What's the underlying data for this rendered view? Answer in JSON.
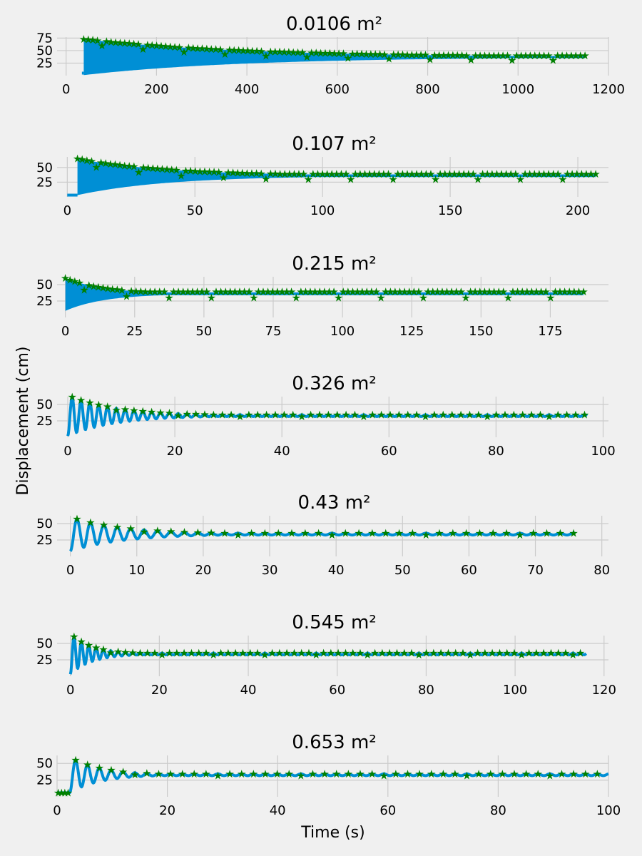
{
  "figure": {
    "ylabel": "Displacement (cm)",
    "xlabel": "Time (s)"
  },
  "colors": {
    "background": "#f0f0f0",
    "line": "#008fd5",
    "marker": "#008000",
    "grid": "#cbcbcb"
  },
  "chart_data": [
    {
      "type": "line",
      "title": "0.0106 m²",
      "style": "dense",
      "xlim": [
        -20,
        1200
      ],
      "ylim": [
        0,
        77
      ],
      "xticks": [
        "0",
        "200",
        "400",
        "600",
        "800",
        "1000",
        "1200"
      ],
      "xtick_values": [
        0,
        200,
        400,
        600,
        800,
        1000,
        1200
      ],
      "yticks": [
        "25",
        "50",
        "75"
      ],
      "ytick_values": [
        25,
        50,
        75
      ],
      "t_start": 39,
      "t_end": 1148,
      "baseline": 5,
      "equilibrium": 37,
      "peak": 73,
      "trough": 1,
      "tau": 350,
      "period": 10
    },
    {
      "type": "line",
      "title": "0.107 m²",
      "style": "dense",
      "xlim": [
        -4,
        212
      ],
      "ylim": [
        0,
        68
      ],
      "xticks": [
        "0",
        "50",
        "100",
        "150",
        "200"
      ],
      "xtick_values": [
        0,
        50,
        100,
        150,
        200
      ],
      "yticks": [
        "25",
        "50"
      ],
      "ytick_values": [
        25,
        50
      ],
      "t_start": 4,
      "t_end": 207,
      "baseline": 3,
      "equilibrium": 36,
      "peak": 65,
      "trough": 3,
      "tau": 35,
      "period": 1.5
    },
    {
      "type": "line",
      "title": "0.215 m²",
      "style": "dense",
      "xlim": [
        -3,
        196
      ],
      "ylim": [
        0,
        62
      ],
      "xticks": [
        "0",
        "25",
        "50",
        "75",
        "100",
        "125",
        "150",
        "175"
      ],
      "xtick_values": [
        0,
        25,
        50,
        75,
        100,
        125,
        150,
        175
      ],
      "yticks": [
        "25",
        "50"
      ],
      "ytick_values": [
        25,
        50
      ],
      "t_start": 0,
      "t_end": 187,
      "baseline": 10,
      "equilibrium": 36,
      "peak": 60,
      "trough": 10,
      "tau": 14,
      "period": 1.3
    },
    {
      "type": "line",
      "title": "0.326 m²",
      "style": "osc",
      "xlim": [
        -2,
        101
      ],
      "ylim": [
        0,
        62
      ],
      "xticks": [
        "0",
        "20",
        "40",
        "60",
        "80",
        "100"
      ],
      "xtick_values": [
        0,
        20,
        40,
        60,
        80,
        100
      ],
      "yticks": [
        "25",
        "50"
      ],
      "ytick_values": [
        25,
        50
      ],
      "t_start": 0,
      "t_end": 97,
      "baseline": 2,
      "equilibrium": 33,
      "peak": 59,
      "trough": 2,
      "tau": 9,
      "period": 1.65
    },
    {
      "type": "line",
      "title": "0.43 m²",
      "style": "osc",
      "xlim": [
        -2,
        81
      ],
      "ylim": [
        0,
        62
      ],
      "xticks": [
        "0",
        "10",
        "20",
        "30",
        "40",
        "50",
        "60",
        "70",
        "80"
      ],
      "xtick_values": [
        0,
        10,
        20,
        30,
        40,
        50,
        60,
        70,
        80
      ],
      "yticks": [
        "25",
        "50"
      ],
      "ytick_values": [
        25,
        50
      ],
      "t_start": 0,
      "t_end": 76,
      "baseline": 8,
      "equilibrium": 34,
      "peak": 58,
      "trough": 8,
      "tau": 8,
      "period": 2.02
    },
    {
      "type": "line",
      "title": "0.545 m²",
      "style": "osc",
      "xlim": [
        -3,
        121
      ],
      "ylim": [
        0,
        62
      ],
      "xticks": [
        "0",
        "20",
        "40",
        "60",
        "80",
        "100",
        "120"
      ],
      "xtick_values": [
        0,
        20,
        40,
        60,
        80,
        100,
        120
      ],
      "yticks": [
        "25",
        "50"
      ],
      "ytick_values": [
        25,
        50
      ],
      "t_start": 0,
      "t_end": 116,
      "baseline": 3,
      "equilibrium": 34,
      "peak": 59,
      "trough": 3,
      "tau": 5,
      "period": 1.65
    },
    {
      "type": "line",
      "title": "0.653 m²",
      "style": "osc",
      "xlim": [
        0,
        100
      ],
      "ylim": [
        0,
        62
      ],
      "xticks": [
        "0",
        "20",
        "40",
        "60",
        "80",
        "100"
      ],
      "xtick_values": [
        0,
        20,
        40,
        60,
        80,
        100
      ],
      "yticks": [
        "25",
        "50"
      ],
      "ytick_values": [
        25,
        50
      ],
      "t_start": 0,
      "t_end": 100,
      "t_rise": 2.3,
      "baseline": 6,
      "equilibrium": 33,
      "peak": 58,
      "trough": 6,
      "tau": 5.5,
      "period": 2.15
    }
  ]
}
